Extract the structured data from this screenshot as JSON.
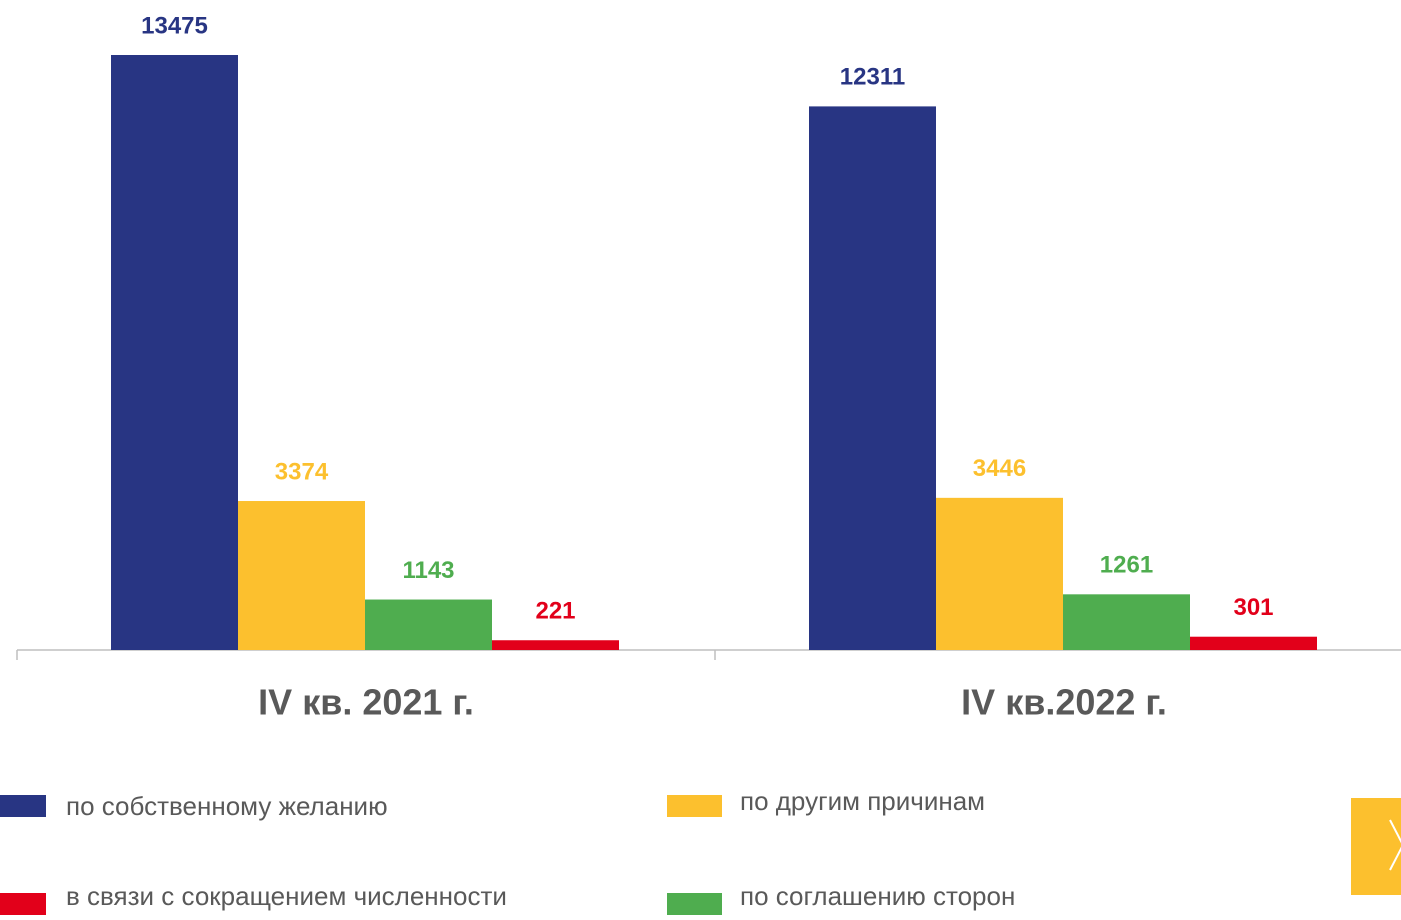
{
  "chart_data": {
    "type": "bar",
    "categories": [
      "IV кв. 2021 г.",
      "IV кв.2022 г."
    ],
    "series": [
      {
        "name": "по собственному желанию",
        "color": "#283583",
        "values": [
          13475,
          12311
        ]
      },
      {
        "name": "по другим причинам",
        "color": "#fcc02e",
        "values": [
          3374,
          3446
        ]
      },
      {
        "name": "по соглашению сторон",
        "color": "#4fad4f",
        "values": [
          1143,
          1261
        ]
      },
      {
        "name": "в связи с сокращением численности",
        "color": "#e2001a",
        "values": [
          221,
          301
        ]
      }
    ]
  }
}
